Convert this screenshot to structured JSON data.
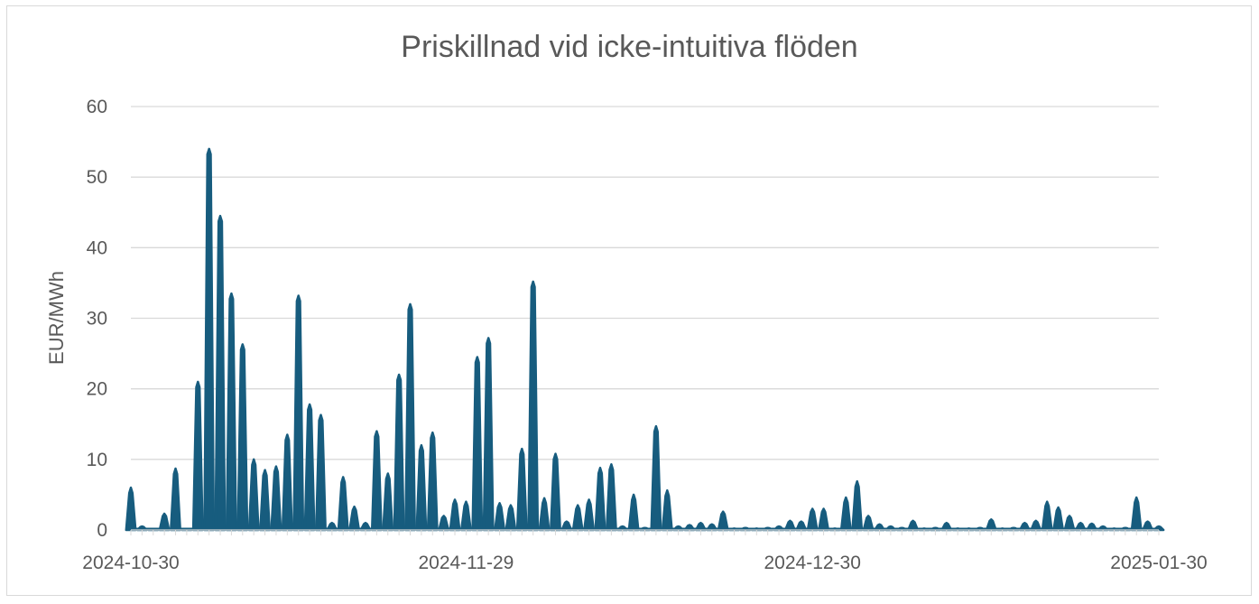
{
  "chart_data": {
    "type": "area",
    "title": "Priskillnad vid icke-intuitiva flöden",
    "xlabel": "",
    "ylabel": "EUR/MWh",
    "ylim": [
      0,
      60
    ],
    "yticks": [
      0,
      10,
      20,
      30,
      40,
      50,
      60
    ],
    "xlim": [
      "2024-10-30",
      "2025-01-30"
    ],
    "xticks": [
      "2024-10-30",
      "2024-11-29",
      "2024-12-30",
      "2025-01-30"
    ],
    "grid": true,
    "legend": "none",
    "color": "#175c7e",
    "series": [
      {
        "x": [
          "2024-10-30",
          "2024-10-31",
          "2024-11-01",
          "2024-11-02",
          "2024-11-03",
          "2024-11-04",
          "2024-11-05",
          "2024-11-06",
          "2024-11-07",
          "2024-11-08",
          "2024-11-09",
          "2024-11-10",
          "2024-11-11",
          "2024-11-12",
          "2024-11-13",
          "2024-11-14",
          "2024-11-15",
          "2024-11-16",
          "2024-11-17",
          "2024-11-18",
          "2024-11-19",
          "2024-11-20",
          "2024-11-21",
          "2024-11-22",
          "2024-11-23",
          "2024-11-24",
          "2024-11-25",
          "2024-11-26",
          "2024-11-27",
          "2024-11-28",
          "2024-11-29",
          "2024-11-30",
          "2024-12-01",
          "2024-12-02",
          "2024-12-03",
          "2024-12-04",
          "2024-12-05",
          "2024-12-06",
          "2024-12-07",
          "2024-12-08",
          "2024-12-09",
          "2024-12-10",
          "2024-12-11",
          "2024-12-12",
          "2024-12-13",
          "2024-12-14",
          "2024-12-15",
          "2024-12-16",
          "2024-12-17",
          "2024-12-18",
          "2024-12-19",
          "2024-12-20",
          "2024-12-21",
          "2024-12-22",
          "2024-12-23",
          "2024-12-24",
          "2024-12-25",
          "2024-12-26",
          "2024-12-27",
          "2024-12-28",
          "2024-12-29",
          "2024-12-30",
          "2024-12-31",
          "2025-01-01",
          "2025-01-02",
          "2025-01-03",
          "2025-01-04",
          "2025-01-05",
          "2025-01-06",
          "2025-01-07",
          "2025-01-08",
          "2025-01-09",
          "2025-01-10",
          "2025-01-11",
          "2025-01-12",
          "2025-01-13",
          "2025-01-14",
          "2025-01-15",
          "2025-01-16",
          "2025-01-17",
          "2025-01-18",
          "2025-01-19",
          "2025-01-20",
          "2025-01-21",
          "2025-01-22",
          "2025-01-23",
          "2025-01-24",
          "2025-01-25",
          "2025-01-26",
          "2025-01-27",
          "2025-01-28",
          "2025-01-29",
          "2025-01-30"
        ],
        "values": [
          6,
          0.5,
          0,
          2.3,
          8.7,
          0,
          21,
          54,
          44.5,
          33.5,
          26.3,
          10,
          8.5,
          9,
          13.5,
          33.2,
          17.8,
          16.3,
          1,
          7.5,
          3.3,
          1,
          14,
          8,
          22,
          32,
          12,
          13.8,
          2,
          4.3,
          4,
          24.5,
          27.2,
          3.8,
          3.5,
          11.5,
          35.2,
          4.5,
          10.8,
          1.2,
          3.5,
          4.3,
          8.8,
          9.3,
          0.5,
          5,
          0.3,
          14.7,
          5.6,
          0.5,
          0.7,
          1,
          0.8,
          2.6,
          0.2,
          0.3,
          0.2,
          0.3,
          0.5,
          1.3,
          1.2,
          3,
          3,
          0.2,
          4.6,
          6.9,
          2,
          0.8,
          0.5,
          0.3,
          1.3,
          0.2,
          0.3,
          1,
          0.2,
          0.2,
          0.3,
          1.5,
          0.2,
          0.3,
          1,
          1.3,
          4,
          3.2,
          2,
          1,
          0.9,
          0.5,
          0.2,
          0.3,
          4.6,
          1.2,
          0.5
        ]
      }
    ]
  }
}
